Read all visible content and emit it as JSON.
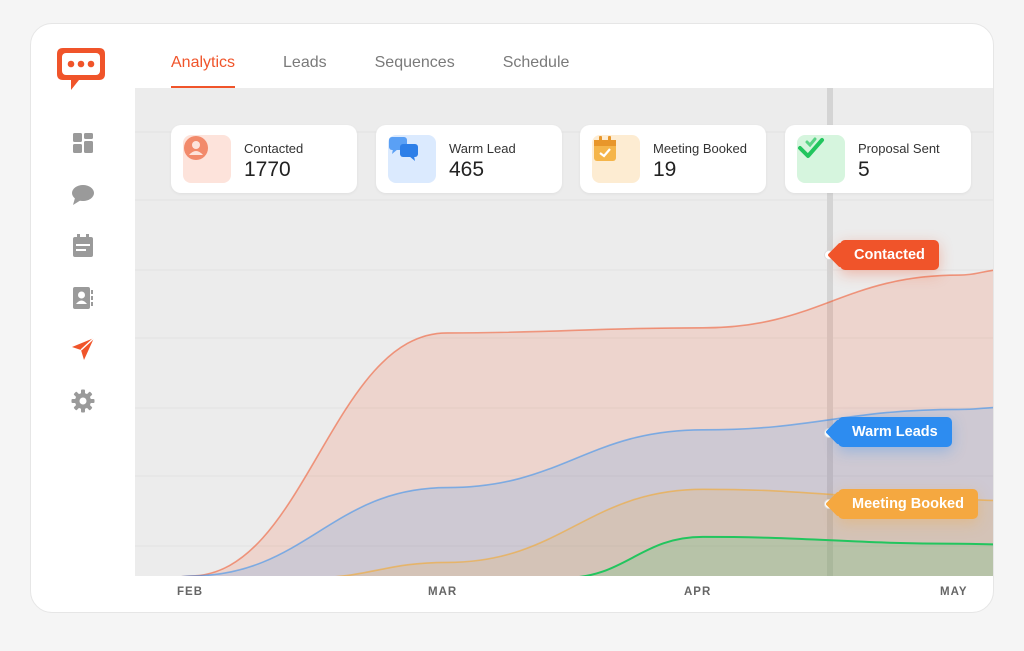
{
  "tabs": [
    {
      "label": "Analytics",
      "active": true
    },
    {
      "label": "Leads",
      "active": false
    },
    {
      "label": "Sequences",
      "active": false
    },
    {
      "label": "Schedule",
      "active": false
    }
  ],
  "sidebar": {
    "items": [
      {
        "icon": "dashboard-icon"
      },
      {
        "icon": "chat-icon"
      },
      {
        "icon": "calendar-icon"
      },
      {
        "icon": "contacts-icon"
      },
      {
        "icon": "send-icon",
        "active": true
      },
      {
        "icon": "gear-icon"
      }
    ]
  },
  "stats": [
    {
      "label": "Contacted",
      "value": "1770",
      "icon": "person-icon",
      "color": "#f0542a"
    },
    {
      "label": "Warm Lead",
      "value": "465",
      "icon": "chat-bubbles-icon",
      "color": "#2d8cf0"
    },
    {
      "label": "Meeting Booked",
      "value": "19",
      "icon": "calendar-check-icon",
      "color": "#f5a623"
    },
    {
      "label": "Proposal Sent",
      "value": "5",
      "icon": "checkmark-icon",
      "color": "#22c55e"
    }
  ],
  "chart_data": {
    "type": "area",
    "x": [
      "FEB",
      "MAR",
      "APR",
      "MAY"
    ],
    "series": [
      {
        "values": [
          0,
          1430,
          1460,
          1770
        ],
        "color": "#f0542a"
      },
      {
        "values": [
          0,
          520,
          860,
          980
        ],
        "color": "#2d8cf0"
      },
      {
        "values": [
          null,
          80,
          510,
          450
        ],
        "color": "#f5a623"
      },
      {
        "values": [
          null,
          null,
          230,
          190
        ],
        "color": "#22c55e"
      }
    ],
    "callouts": [
      {
        "label": "Contacted",
        "color": "#f0542a"
      },
      {
        "label": "Warm Leads",
        "color": "#2d8cf0"
      },
      {
        "label": "Meeting Booked",
        "color": "#f5a623"
      }
    ],
    "grid": true
  }
}
